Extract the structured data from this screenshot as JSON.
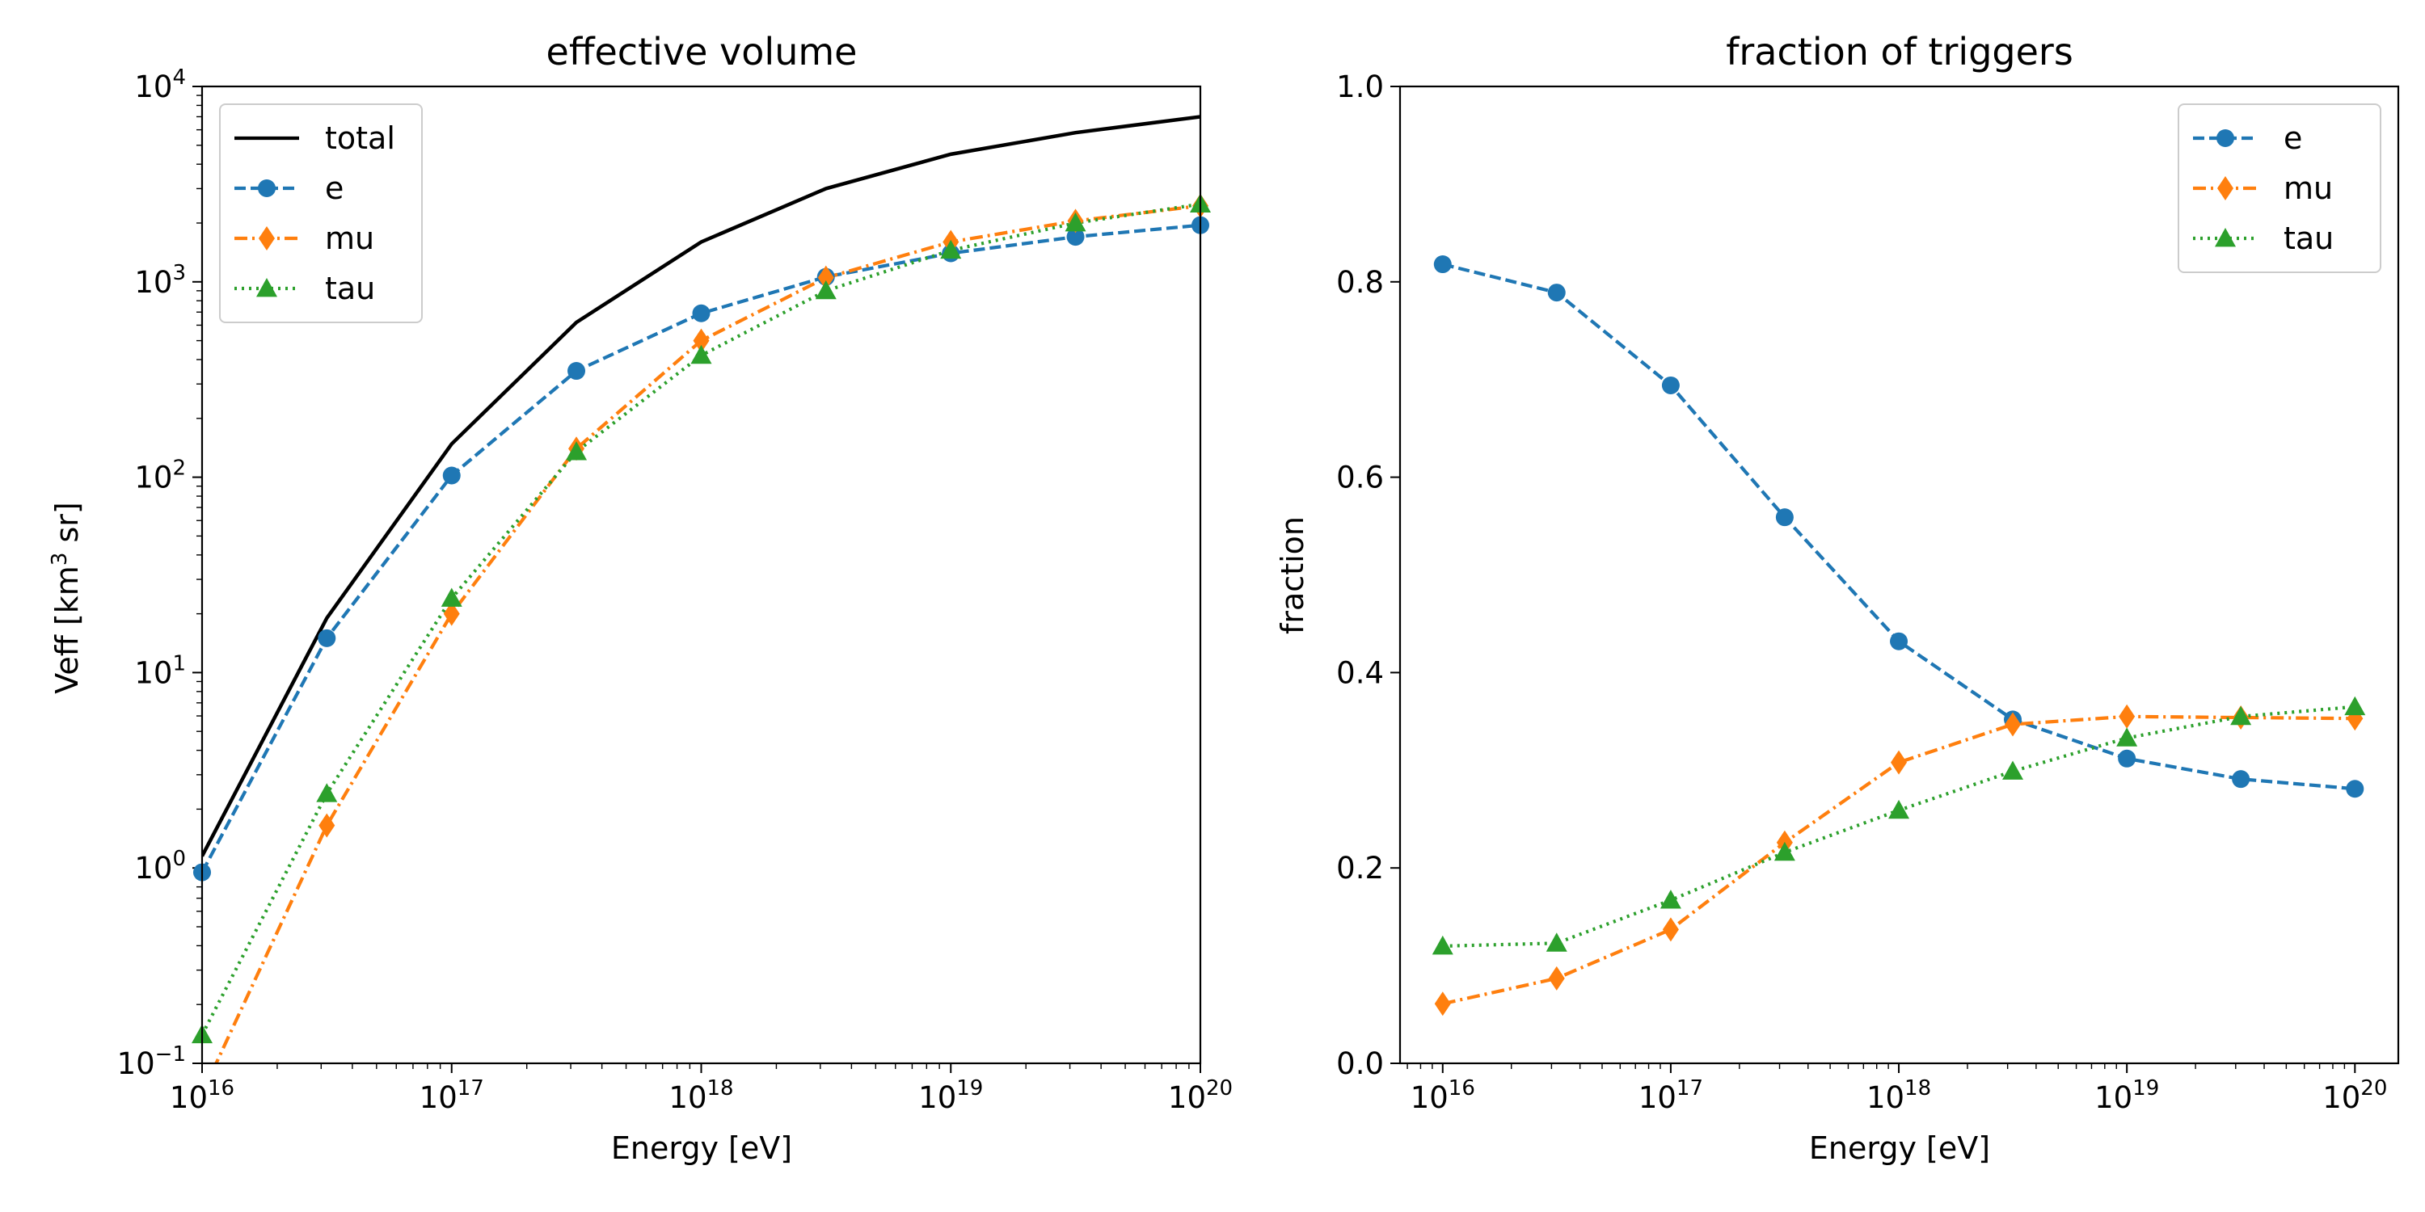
{
  "colors": {
    "total": "#000000",
    "e": "#1f77b4",
    "mu": "#ff7f0e",
    "tau": "#2ca02c"
  },
  "chart_data": [
    {
      "type": "line",
      "title": "effective volume",
      "xlabel": "Energy [eV]",
      "ylabel_main": "Veff [km",
      "ylabel_sup": "3",
      "ylabel_tail": " sr]",
      "xscale": "log",
      "yscale": "log",
      "xlim": [
        1e+16,
        1e+20
      ],
      "ylim": [
        0.1,
        10000
      ],
      "xticks": [
        {
          "base": "10",
          "exp": "16",
          "value": 1e+16
        },
        {
          "base": "10",
          "exp": "17",
          "value": 1e+17
        },
        {
          "base": "10",
          "exp": "18",
          "value": 1e+18
        },
        {
          "base": "10",
          "exp": "19",
          "value": 1e+19
        },
        {
          "base": "10",
          "exp": "20",
          "value": 1e+20
        }
      ],
      "yticks": [
        {
          "base": "10",
          "exp": "−1",
          "value": 0.1
        },
        {
          "base": "10",
          "exp": "0",
          "value": 1
        },
        {
          "base": "10",
          "exp": "1",
          "value": 10
        },
        {
          "base": "10",
          "exp": "2",
          "value": 100
        },
        {
          "base": "10",
          "exp": "3",
          "value": 1000
        },
        {
          "base": "10",
          "exp": "4",
          "value": 10000
        }
      ],
      "grid": false,
      "legend_position": "upper-left",
      "x": [
        1e+16,
        3.16e+16,
        1e+17,
        3.16e+17,
        1e+18,
        3.16e+18,
        1e+19,
        3.16e+19,
        1e+20
      ],
      "series": [
        {
          "name": "total",
          "style": "solid",
          "marker": "none",
          "values": [
            1.15,
            19,
            148,
            620,
            1600,
            3000,
            4500,
            5800,
            7000
          ]
        },
        {
          "name": "e",
          "style": "dashed",
          "marker": "circle",
          "values": [
            0.95,
            15,
            102,
            350,
            690,
            1060,
            1400,
            1700,
            1950
          ]
        },
        {
          "name": "mu",
          "style": "dashdot",
          "marker": "diamond",
          "values": [
            0.07,
            1.65,
            20,
            140,
            500,
            1050,
            1600,
            2050,
            2450
          ]
        },
        {
          "name": "tau",
          "style": "dotted",
          "marker": "triangle",
          "values": [
            0.14,
            2.4,
            24,
            135,
            420,
            900,
            1450,
            2000,
            2500
          ]
        }
      ]
    },
    {
      "type": "line",
      "title": "fraction of triggers",
      "xlabel": "Energy [eV]",
      "ylabel": "fraction",
      "xscale": "log",
      "yscale": "linear",
      "xlim": [
        6500000000000000.0,
        1.55e+20
      ],
      "ylim": [
        0,
        1
      ],
      "xticks": [
        {
          "base": "10",
          "exp": "16",
          "value": 1e+16
        },
        {
          "base": "10",
          "exp": "17",
          "value": 1e+17
        },
        {
          "base": "10",
          "exp": "18",
          "value": 1e+18
        },
        {
          "base": "10",
          "exp": "19",
          "value": 1e+19
        },
        {
          "base": "10",
          "exp": "20",
          "value": 1e+20
        }
      ],
      "yticks": [
        {
          "label": "0.0",
          "value": 0.0
        },
        {
          "label": "0.2",
          "value": 0.2
        },
        {
          "label": "0.4",
          "value": 0.4
        },
        {
          "label": "0.6",
          "value": 0.6
        },
        {
          "label": "0.8",
          "value": 0.8
        },
        {
          "label": "1.0",
          "value": 1.0
        }
      ],
      "grid": false,
      "legend_position": "upper-right",
      "x": [
        1e+16,
        3.16e+16,
        1e+17,
        3.16e+17,
        1e+18,
        3.16e+18,
        1e+19,
        3.16e+19,
        1e+20
      ],
      "series": [
        {
          "name": "e",
          "style": "dashed",
          "marker": "circle",
          "values": [
            0.818,
            0.789,
            0.694,
            0.559,
            0.432,
            0.352,
            0.312,
            0.291,
            0.281
          ]
        },
        {
          "name": "mu",
          "style": "dashdot",
          "marker": "diamond",
          "values": [
            0.061,
            0.087,
            0.137,
            0.226,
            0.308,
            0.347,
            0.355,
            0.354,
            0.353
          ]
        },
        {
          "name": "tau",
          "style": "dotted",
          "marker": "triangle",
          "values": [
            0.12,
            0.123,
            0.167,
            0.216,
            0.259,
            0.299,
            0.333,
            0.355,
            0.365
          ]
        }
      ]
    }
  ]
}
